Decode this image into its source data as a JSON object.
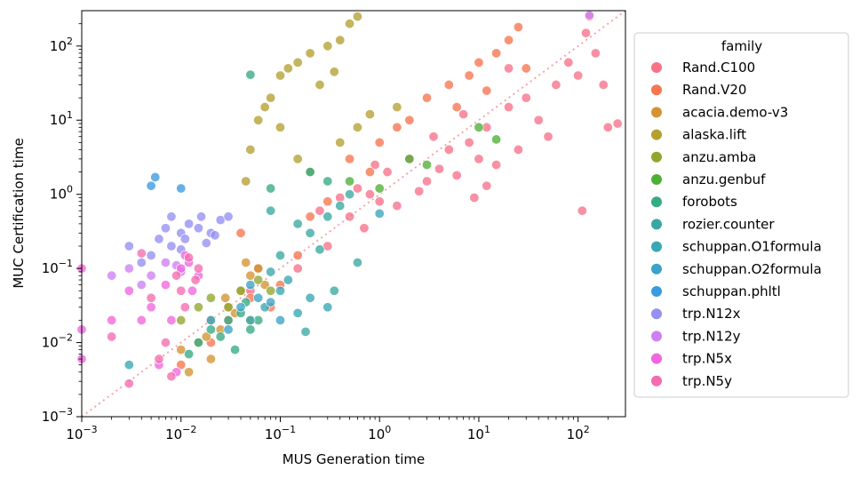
{
  "chart_data": {
    "type": "scatter",
    "xlabel": "MUS Generation time",
    "ylabel": "MUC Certification time",
    "xscale": "log",
    "yscale": "log",
    "xlim": [
      0.001,
      300
    ],
    "ylim": [
      0.001,
      300
    ],
    "xticks": [
      {
        "base": "10",
        "exp": "−3",
        "v": 0.001
      },
      {
        "base": "10",
        "exp": "−2",
        "v": 0.01
      },
      {
        "base": "10",
        "exp": "−1",
        "v": 0.1
      },
      {
        "base": "10",
        "exp": "0",
        "v": 1
      },
      {
        "base": "10",
        "exp": "1",
        "v": 10
      },
      {
        "base": "10",
        "exp": "2",
        "v": 100
      }
    ],
    "yticks": [
      {
        "base": "10",
        "exp": "−3",
        "v": 0.001
      },
      {
        "base": "10",
        "exp": "−2",
        "v": 0.01
      },
      {
        "base": "10",
        "exp": "−1",
        "v": 0.1
      },
      {
        "base": "10",
        "exp": "0",
        "v": 1
      },
      {
        "base": "10",
        "exp": "1",
        "v": 10
      },
      {
        "base": "10",
        "exp": "2",
        "v": 100
      }
    ],
    "diagonal": {
      "style": "dotted",
      "color": "#f4a6a6"
    },
    "grid": false,
    "legend": {
      "title": "family",
      "placement": "right"
    },
    "series": [
      {
        "name": "Rand.C100",
        "color": "#f77189",
        "points": [
          [
            0.4,
            0.9
          ],
          [
            0.6,
            1.2
          ],
          [
            0.8,
            1.0
          ],
          [
            1.2,
            2.0
          ],
          [
            1.5,
            0.7
          ],
          [
            2,
            3
          ],
          [
            3,
            1.5
          ],
          [
            4,
            2.2
          ],
          [
            5,
            4
          ],
          [
            6,
            1.8
          ],
          [
            8,
            5
          ],
          [
            10,
            3
          ],
          [
            12,
            8
          ],
          [
            15,
            2.5
          ],
          [
            20,
            15
          ],
          [
            25,
            4
          ],
          [
            30,
            20
          ],
          [
            40,
            10
          ],
          [
            50,
            6
          ],
          [
            60,
            30
          ],
          [
            80,
            60
          ],
          [
            100,
            40
          ],
          [
            120,
            150
          ],
          [
            150,
            80
          ],
          [
            180,
            30
          ],
          [
            200,
            8
          ],
          [
            250,
            9
          ],
          [
            130,
            250
          ],
          [
            110,
            0.6
          ],
          [
            20,
            50
          ],
          [
            0.5,
            0.5
          ],
          [
            0.3,
            0.2
          ],
          [
            0.7,
            0.35
          ],
          [
            1,
            0.8
          ],
          [
            2.5,
            1.1
          ],
          [
            0.15,
            0.1
          ],
          [
            0.05,
            0.05
          ],
          [
            0.9,
            2.5
          ],
          [
            3.5,
            6
          ],
          [
            7,
            12
          ],
          [
            9,
            0.9
          ],
          [
            12,
            1.3
          ],
          [
            0.25,
            0.6
          ]
        ]
      },
      {
        "name": "Rand.V20",
        "color": "#f7754f",
        "points": [
          [
            0.01,
            0.005
          ],
          [
            0.02,
            0.01
          ],
          [
            0.03,
            0.02
          ],
          [
            0.05,
            0.04
          ],
          [
            0.08,
            0.03
          ],
          [
            0.1,
            0.06
          ],
          [
            0.2,
            0.5
          ],
          [
            0.3,
            0.8
          ],
          [
            0.5,
            3
          ],
          [
            1,
            5
          ],
          [
            2,
            10
          ],
          [
            3,
            20
          ],
          [
            5,
            30
          ],
          [
            8,
            40
          ],
          [
            10,
            60
          ],
          [
            15,
            80
          ],
          [
            20,
            120
          ],
          [
            30,
            50
          ],
          [
            1.5,
            8
          ],
          [
            0.8,
            2
          ],
          [
            0.15,
            0.15
          ],
          [
            0.06,
            0.1
          ],
          [
            0.04,
            0.3
          ],
          [
            25,
            180
          ],
          [
            12,
            25
          ],
          [
            6,
            15
          ]
        ]
      },
      {
        "name": "acacia.demo-v3",
        "color": "#d39432",
        "points": [
          [
            0.01,
            0.008
          ],
          [
            0.015,
            0.01
          ],
          [
            0.02,
            0.02
          ],
          [
            0.025,
            0.015
          ],
          [
            0.03,
            0.03
          ],
          [
            0.04,
            0.05
          ],
          [
            0.05,
            0.08
          ],
          [
            0.06,
            0.1
          ],
          [
            0.02,
            0.006
          ],
          [
            0.012,
            0.004
          ],
          [
            0.035,
            0.025
          ],
          [
            0.045,
            0.12
          ],
          [
            0.07,
            0.06
          ],
          [
            0.018,
            0.012
          ],
          [
            0.028,
            0.04
          ]
        ]
      },
      {
        "name": "alaska.lift",
        "color": "#b3a031",
        "points": [
          [
            0.05,
            4
          ],
          [
            0.06,
            10
          ],
          [
            0.08,
            20
          ],
          [
            0.1,
            40
          ],
          [
            0.12,
            50
          ],
          [
            0.15,
            60
          ],
          [
            0.2,
            80
          ],
          [
            0.3,
            100
          ],
          [
            0.4,
            120
          ],
          [
            0.5,
            200
          ],
          [
            0.6,
            250
          ],
          [
            0.1,
            8
          ],
          [
            0.2,
            2
          ],
          [
            0.4,
            5
          ],
          [
            0.8,
            12
          ],
          [
            1.5,
            15
          ],
          [
            0.15,
            3
          ],
          [
            0.25,
            30
          ],
          [
            0.35,
            45
          ],
          [
            0.07,
            15
          ],
          [
            0.045,
            1.5
          ],
          [
            0.6,
            8
          ]
        ]
      },
      {
        "name": "anzu.amba",
        "color": "#8fa72f",
        "points": [
          [
            0.03,
            0.03
          ],
          [
            0.04,
            0.05
          ],
          [
            0.05,
            0.02
          ],
          [
            0.02,
            0.04
          ],
          [
            0.06,
            0.07
          ],
          [
            0.08,
            0.05
          ],
          [
            0.01,
            0.02
          ],
          [
            0.015,
            0.03
          ]
        ]
      },
      {
        "name": "anzu.genbuf",
        "color": "#4fae37",
        "points": [
          [
            2,
            3
          ],
          [
            3,
            2.5
          ],
          [
            10,
            8
          ],
          [
            15,
            5.5
          ],
          [
            0.5,
            1.5
          ],
          [
            1,
            1.2
          ]
        ]
      },
      {
        "name": "forobots",
        "color": "#35ab81",
        "points": [
          [
            0.02,
            0.015
          ],
          [
            0.025,
            0.012
          ],
          [
            0.03,
            0.02
          ],
          [
            0.015,
            0.01
          ],
          [
            0.04,
            0.025
          ],
          [
            0.035,
            0.008
          ],
          [
            0.012,
            0.007
          ],
          [
            0.05,
            0.015
          ],
          [
            0.06,
            0.02
          ],
          [
            0.045,
            0.035
          ],
          [
            0.08,
            1.2
          ],
          [
            0.2,
            2.0
          ],
          [
            0.3,
            1.5
          ],
          [
            0.05,
            41
          ]
        ]
      },
      {
        "name": "rozier.counter",
        "color": "#38a9a0",
        "points": [
          [
            0.1,
            0.15
          ],
          [
            0.2,
            0.3
          ],
          [
            0.3,
            0.5
          ],
          [
            0.5,
            1.0
          ],
          [
            0.15,
            0.4
          ],
          [
            0.4,
            0.7
          ],
          [
            0.25,
            0.18
          ],
          [
            0.6,
            0.12
          ],
          [
            0.35,
            0.05
          ],
          [
            0.08,
            0.6
          ],
          [
            0.18,
            0.014
          ]
        ]
      },
      {
        "name": "schuppan.O1formula",
        "color": "#39a7b4",
        "points": [
          [
            0.05,
            0.02
          ],
          [
            0.07,
            0.03
          ],
          [
            0.1,
            0.05
          ],
          [
            0.15,
            0.025
          ],
          [
            0.2,
            0.04
          ],
          [
            0.3,
            0.03
          ],
          [
            0.003,
            0.005
          ],
          [
            0.08,
            0.09
          ],
          [
            1.0,
            0.55
          ],
          [
            0.12,
            0.07
          ]
        ]
      },
      {
        "name": "schuppan.O2formula",
        "color": "#3ba3c6",
        "points": [
          [
            0.02,
            0.02
          ],
          [
            0.03,
            0.015
          ],
          [
            0.04,
            0.03
          ],
          [
            0.06,
            0.04
          ],
          [
            0.1,
            0.02
          ],
          [
            0.05,
            0.06
          ],
          [
            0.08,
            0.035
          ]
        ]
      },
      {
        "name": "schuppan.phltl",
        "color": "#3b9ae0",
        "points": [
          [
            0.005,
            1.3
          ],
          [
            0.0055,
            1.7
          ],
          [
            0.01,
            1.2
          ]
        ]
      },
      {
        "name": "trp.N12x",
        "color": "#9590f2",
        "points": [
          [
            0.005,
            0.15
          ],
          [
            0.008,
            0.2
          ],
          [
            0.01,
            0.3
          ],
          [
            0.012,
            0.4
          ],
          [
            0.015,
            0.35
          ],
          [
            0.02,
            0.3
          ],
          [
            0.025,
            0.45
          ],
          [
            0.008,
            0.5
          ],
          [
            0.006,
            0.25
          ],
          [
            0.01,
            0.18
          ],
          [
            0.018,
            0.22
          ],
          [
            0.022,
            0.28
          ],
          [
            0.003,
            0.2
          ],
          [
            0.004,
            0.12
          ],
          [
            0.03,
            0.5
          ],
          [
            0.007,
            0.35
          ],
          [
            0.016,
            0.5
          ],
          [
            0.011,
            0.25
          ]
        ]
      },
      {
        "name": "trp.N12y",
        "color": "#ce80f2",
        "points": [
          [
            0.003,
            0.1
          ],
          [
            0.005,
            0.08
          ],
          [
            0.007,
            0.12
          ],
          [
            0.01,
            0.09
          ],
          [
            0.004,
            0.06
          ],
          [
            0.002,
            0.08
          ],
          [
            0.009,
            0.11
          ],
          [
            130,
            260
          ]
        ]
      },
      {
        "name": "trp.N5x",
        "color": "#f066de",
        "points": [
          [
            0.003,
            0.05
          ],
          [
            0.005,
            0.03
          ],
          [
            0.007,
            0.06
          ],
          [
            0.01,
            0.1
          ],
          [
            0.012,
            0.12
          ],
          [
            0.008,
            0.02
          ],
          [
            0.002,
            0.02
          ],
          [
            0.001,
            0.1
          ],
          [
            0.001,
            0.015
          ],
          [
            0.006,
            0.005
          ],
          [
            0.009,
            0.004
          ],
          [
            0.015,
            0.08
          ],
          [
            0.011,
            0.15
          ],
          [
            0.013,
            0.05
          ],
          [
            0.004,
            0.02
          ],
          [
            0.001,
            0.006
          ]
        ]
      },
      {
        "name": "trp.N5y",
        "color": "#f56bb0",
        "points": [
          [
            0.003,
            0.0028
          ],
          [
            0.006,
            0.006
          ],
          [
            0.008,
            0.0035
          ],
          [
            0.01,
            0.05
          ],
          [
            0.012,
            0.14
          ],
          [
            0.015,
            0.1
          ],
          [
            0.009,
            0.08
          ],
          [
            0.005,
            0.04
          ],
          [
            0.007,
            0.01
          ],
          [
            0.004,
            0.16
          ],
          [
            0.011,
            0.03
          ],
          [
            0.002,
            0.012
          ],
          [
            0.014,
            0.07
          ]
        ]
      }
    ]
  }
}
